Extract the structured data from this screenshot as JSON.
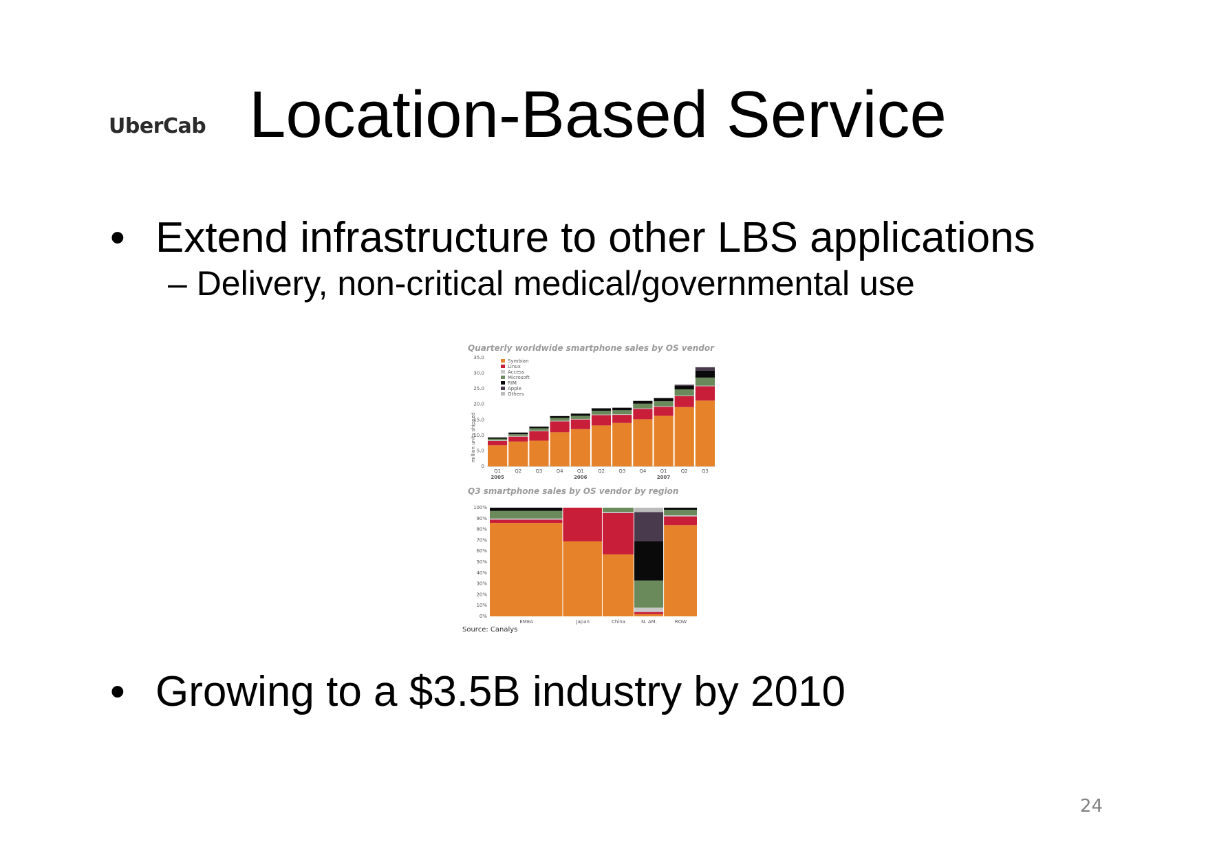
{
  "logo": "UberCab",
  "title": "Location-Based Service",
  "bullets": [
    {
      "text": "Extend infrastructure to other LBS applications",
      "sub": "– Delivery, non-critical medical/governmental use"
    },
    {
      "text": "Growing to a $3.5B industry by 2010"
    }
  ],
  "page_number": "24",
  "colors": {
    "Symbian": "#e6832a",
    "Linux": "#c81e3a",
    "Access": "#c8c8c8",
    "Microsoft": "#6b8a5c",
    "RIM": "#0a0a0a",
    "Apple": "#4a3a4e",
    "Others": "#bbbbbb"
  },
  "chart_data": [
    {
      "type": "bar",
      "stacked": true,
      "title": "Quarterly worldwide smartphone sales by OS vendor",
      "ylabel": "million units shipped",
      "ylim": [
        0,
        35
      ],
      "yticks": [
        "35.0",
        "30.0",
        "25.0",
        "20.0",
        "15.0",
        "10.0",
        "5.0",
        "0"
      ],
      "categories": [
        "Q1",
        "Q2",
        "Q3",
        "Q4",
        "Q1",
        "Q2",
        "Q3",
        "Q4",
        "Q1",
        "Q2",
        "Q3"
      ],
      "year_labels": [
        {
          "label": "2005",
          "index": 0
        },
        {
          "label": "2006",
          "index": 4
        },
        {
          "label": "2007",
          "index": 8
        }
      ],
      "legend_position": "top-left",
      "series": [
        {
          "name": "Symbian",
          "values": [
            6.8,
            8.0,
            8.3,
            11.0,
            12.0,
            13.2,
            14.0,
            15.2,
            16.3,
            19.1,
            21.2
          ]
        },
        {
          "name": "Linux",
          "values": [
            1.4,
            1.6,
            3.0,
            3.5,
            3.1,
            3.3,
            2.6,
            3.3,
            2.9,
            3.5,
            4.6
          ]
        },
        {
          "name": "Access",
          "values": [
            0.2,
            0.2,
            0.2,
            0.2,
            0.2,
            0.2,
            0.2,
            0.2,
            0.2,
            0.2,
            0.2
          ]
        },
        {
          "name": "Microsoft",
          "values": [
            0.5,
            0.6,
            0.8,
            0.9,
            1.0,
            1.2,
            1.3,
            1.5,
            1.6,
            2.0,
            2.6
          ]
        },
        {
          "name": "RIM",
          "values": [
            0.4,
            0.5,
            0.5,
            0.6,
            0.7,
            0.8,
            0.8,
            0.9,
            1.0,
            1.2,
            2.2
          ]
        },
        {
          "name": "Apple",
          "values": [
            0,
            0,
            0,
            0,
            0,
            0,
            0,
            0,
            0,
            0.3,
            1.1
          ]
        },
        {
          "name": "Others",
          "values": [
            0.1,
            0.1,
            0.1,
            0.1,
            0.1,
            0.1,
            0.1,
            0.1,
            0.1,
            0.1,
            0.1
          ]
        }
      ]
    },
    {
      "type": "bar",
      "stacked": true,
      "title": "Q3 smartphone sales by OS vendor by region",
      "ylim": [
        0,
        100
      ],
      "yticks": [
        "100%",
        "90%",
        "80%",
        "70%",
        "60%",
        "50%",
        "40%",
        "30%",
        "20%",
        "10%",
        "0%"
      ],
      "categories": [
        "EMEA",
        "Japan",
        "China",
        "N. AM.",
        "ROW"
      ],
      "widths": [
        37,
        20,
        16,
        15,
        17
      ],
      "source": "Source: Canalys",
      "series": [
        {
          "name": "Symbian",
          "values": [
            86,
            69,
            57,
            2,
            84
          ]
        },
        {
          "name": "Linux",
          "values": [
            3,
            31,
            38,
            2,
            8
          ]
        },
        {
          "name": "Access",
          "values": [
            1,
            0,
            1,
            4,
            1
          ]
        },
        {
          "name": "Microsoft",
          "values": [
            7,
            0,
            4,
            25,
            5
          ]
        },
        {
          "name": "RIM",
          "values": [
            3,
            0,
            0,
            36,
            2
          ]
        },
        {
          "name": "Apple",
          "values": [
            0,
            0,
            0,
            27,
            0
          ]
        },
        {
          "name": "Others",
          "values": [
            0,
            0,
            0,
            4,
            0
          ]
        }
      ]
    }
  ]
}
